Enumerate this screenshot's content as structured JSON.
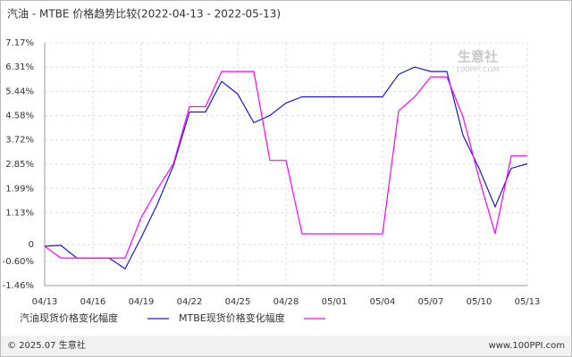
{
  "chart_data": {
    "type": "line",
    "title": "汽油 - MTBE 价格趋势比较(2022-04-13 - 2022-05-13)",
    "categories": [
      "04/13",
      null,
      null,
      "04/16",
      null,
      null,
      "04/19",
      null,
      null,
      "04/22",
      null,
      null,
      "04/25",
      null,
      null,
      "04/28",
      null,
      null,
      "05/01",
      null,
      null,
      "05/04",
      null,
      null,
      "05/07",
      null,
      null,
      "05/10",
      null,
      null,
      "05/13"
    ],
    "series": [
      {
        "name": "汽油现货价格变化幅度",
        "color": "#1a1acc",
        "values": [
          -0.06,
          -0.03,
          -0.48,
          -0.48,
          -0.48,
          -0.86,
          0.25,
          1.43,
          2.8,
          4.71,
          4.71,
          5.8,
          5.35,
          4.33,
          4.59,
          5.03,
          5.25,
          5.25,
          5.25,
          5.25,
          5.25,
          5.25,
          6.05,
          6.31,
          6.15,
          6.15,
          3.89,
          2.71,
          1.34,
          2.71,
          2.87
        ]
      },
      {
        "name": "MTBE现货价格变化幅度",
        "color": "#ff00ff",
        "values": [
          -0.06,
          -0.48,
          -0.48,
          -0.48,
          -0.48,
          -0.48,
          0.96,
          1.97,
          2.87,
          4.9,
          4.9,
          6.15,
          6.15,
          6.15,
          2.99,
          2.99,
          0.38,
          0.38,
          0.38,
          0.38,
          0.38,
          0.38,
          4.75,
          5.25,
          5.96,
          5.96,
          4.55,
          2.36,
          0.38,
          3.15,
          3.15
        ]
      }
    ],
    "ylim": [
      -1.46,
      7.17
    ],
    "yticks": [
      {
        "value": -1.46,
        "label": "-1.46%"
      },
      {
        "value": -0.6,
        "label": "-0.60%"
      },
      0,
      {
        "value": 1.13,
        "label": "1.13%"
      },
      {
        "value": 1.99,
        "label": "1.99%"
      },
      {
        "value": 2.85,
        "label": "2.85%"
      },
      {
        "value": 3.72,
        "label": "3.72%"
      },
      {
        "value": 4.58,
        "label": "4.58%"
      },
      {
        "value": 5.44,
        "label": "5.44%"
      },
      {
        "value": 6.31,
        "label": "6.31%"
      },
      {
        "value": 7.17,
        "label": "7.17%"
      }
    ],
    "grid": true
  },
  "watermark": {
    "name": "生意社",
    "site": "100PPI.COM"
  },
  "footer": {
    "copyright": "© 2025.07 生意社",
    "site": "www.100PPI.com"
  }
}
